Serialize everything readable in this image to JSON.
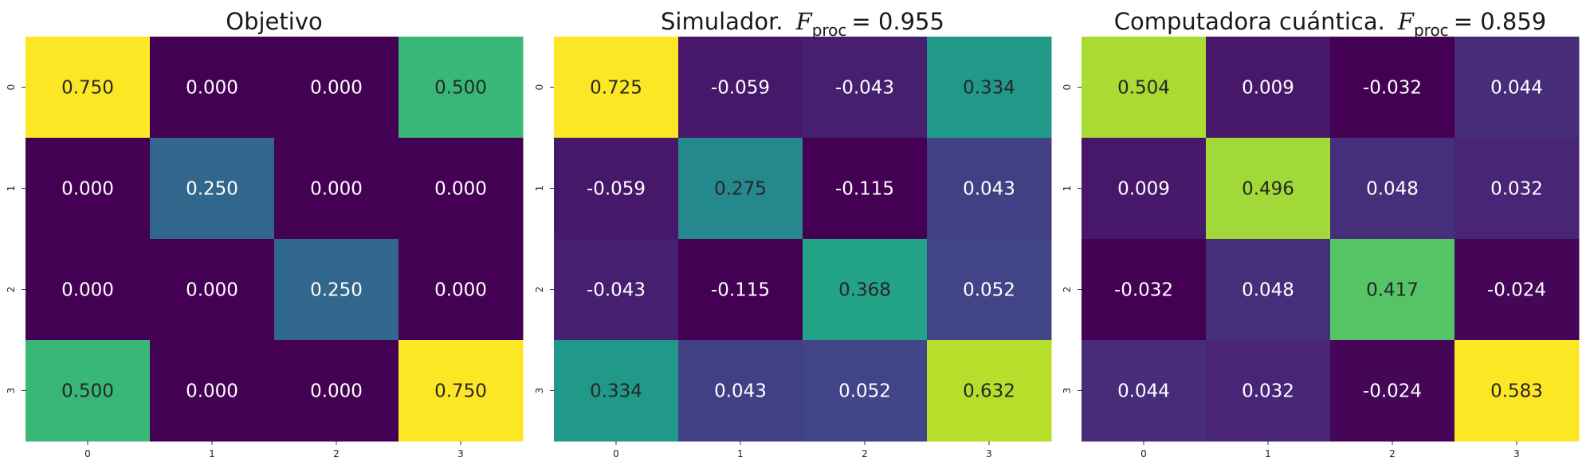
{
  "chart_data": [
    {
      "type": "heatmap",
      "title": {
        "text": "Objetivo",
        "metric_symbol": "",
        "metric_sub": "",
        "metric_value": ""
      },
      "x_categories": [
        "0",
        "1",
        "2",
        "3"
      ],
      "y_categories": [
        "0",
        "1",
        "2",
        "3"
      ],
      "values": [
        [
          0.75,
          0.0,
          0.0,
          0.5
        ],
        [
          0.0,
          0.25,
          0.0,
          0.0
        ],
        [
          0.0,
          0.0,
          0.25,
          0.0
        ],
        [
          0.5,
          0.0,
          0.0,
          0.75
        ]
      ],
      "value_labels": [
        [
          "0.750",
          "0.000",
          "0.000",
          "0.500"
        ],
        [
          "0.000",
          "0.250",
          "0.000",
          "0.000"
        ],
        [
          "0.000",
          "0.000",
          "0.250",
          "0.000"
        ],
        [
          "0.500",
          "0.000",
          "0.000",
          "0.750"
        ]
      ]
    },
    {
      "type": "heatmap",
      "title": {
        "text": "Simulador.",
        "metric_symbol": "F",
        "metric_sub": "proc",
        "metric_value": "= 0.955"
      },
      "x_categories": [
        "0",
        "1",
        "2",
        "3"
      ],
      "y_categories": [
        "0",
        "1",
        "2",
        "3"
      ],
      "values": [
        [
          0.725,
          -0.059,
          -0.043,
          0.334
        ],
        [
          -0.059,
          0.275,
          -0.115,
          0.043
        ],
        [
          -0.043,
          -0.115,
          0.368,
          0.052
        ],
        [
          0.334,
          0.043,
          0.052,
          0.632
        ]
      ],
      "value_labels": [
        [
          "0.725",
          "-0.059",
          "-0.043",
          "0.334"
        ],
        [
          "-0.059",
          "0.275",
          "-0.115",
          "0.043"
        ],
        [
          "-0.043",
          "-0.115",
          "0.368",
          "0.052"
        ],
        [
          "0.334",
          "0.043",
          "0.052",
          "0.632"
        ]
      ]
    },
    {
      "type": "heatmap",
      "title": {
        "text": "Computadora cuántica.",
        "metric_symbol": "F",
        "metric_sub": "proc",
        "metric_value": "= 0.859"
      },
      "x_categories": [
        "0",
        "1",
        "2",
        "3"
      ],
      "y_categories": [
        "0",
        "1",
        "2",
        "3"
      ],
      "values": [
        [
          0.504,
          0.009,
          -0.032,
          0.044
        ],
        [
          0.009,
          0.496,
          0.048,
          0.032
        ],
        [
          -0.032,
          0.048,
          0.417,
          -0.024
        ],
        [
          0.044,
          0.032,
          -0.024,
          0.583
        ]
      ],
      "value_labels": [
        [
          "0.504",
          "0.009",
          "-0.032",
          "0.044"
        ],
        [
          "0.009",
          "0.496",
          "0.048",
          "0.032"
        ],
        [
          "-0.032",
          "0.048",
          "0.417",
          "-0.024"
        ],
        [
          "0.044",
          "0.032",
          "-0.024",
          "0.583"
        ]
      ]
    }
  ],
  "colormap": {
    "name": "viridis",
    "light_text_color": "#ffffff",
    "dark_text_color": "#262626"
  }
}
